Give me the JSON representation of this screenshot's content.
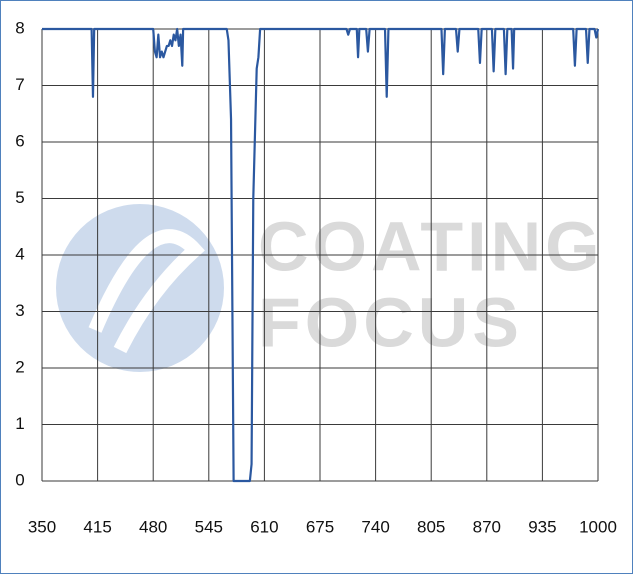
{
  "chart_data": {
    "type": "line",
    "watermark": [
      "COATING",
      "FOCUS"
    ],
    "x": [
      350,
      408,
      409.6,
      411,
      480,
      482,
      484,
      486,
      488,
      490,
      492,
      494,
      496,
      498,
      500,
      502,
      504,
      506,
      508,
      510,
      512,
      514,
      515,
      566,
      568,
      571,
      574,
      584,
      593,
      595,
      597,
      601,
      603,
      605,
      706,
      708,
      710,
      718,
      719.5,
      721,
      729,
      731,
      733,
      751,
      753,
      755,
      817,
      819,
      821,
      834,
      836,
      838,
      860,
      862,
      864,
      876,
      878,
      880,
      890,
      892,
      894,
      899,
      900.7,
      902,
      971,
      973,
      975,
      986,
      988,
      990,
      996,
      998,
      1000
    ],
    "series": [
      {
        "color": "#2b58a0",
        "values": [
          8,
          8,
          6.8,
          8,
          8,
          7.6,
          7.5,
          7.9,
          7.5,
          7.6,
          7.5,
          7.6,
          7.7,
          7.7,
          7.8,
          7.7,
          7.9,
          7.8,
          8,
          7.7,
          7.9,
          7.35,
          8,
          8,
          7.8,
          6.4,
          0,
          0,
          0,
          0.3,
          5,
          7.3,
          7.5,
          8,
          8,
          7.9,
          8,
          8,
          7.5,
          8,
          8,
          7.6,
          8,
          8,
          6.8,
          8,
          8,
          7.2,
          8,
          8,
          7.6,
          8,
          8,
          7.4,
          8,
          8,
          7.25,
          8,
          8,
          7.2,
          8,
          8,
          7.3,
          8,
          8,
          7.35,
          8,
          8,
          7.4,
          8,
          8,
          7.85,
          8
        ]
      }
    ],
    "xlim": [
      350,
      1000
    ],
    "xticks": [
      350,
      415,
      480,
      545,
      610,
      675,
      740,
      805,
      870,
      935,
      1000
    ],
    "ylim": [
      0,
      8
    ],
    "yticks": [
      0,
      1,
      2,
      3,
      4,
      5,
      6,
      7,
      8
    ],
    "grid": true
  }
}
